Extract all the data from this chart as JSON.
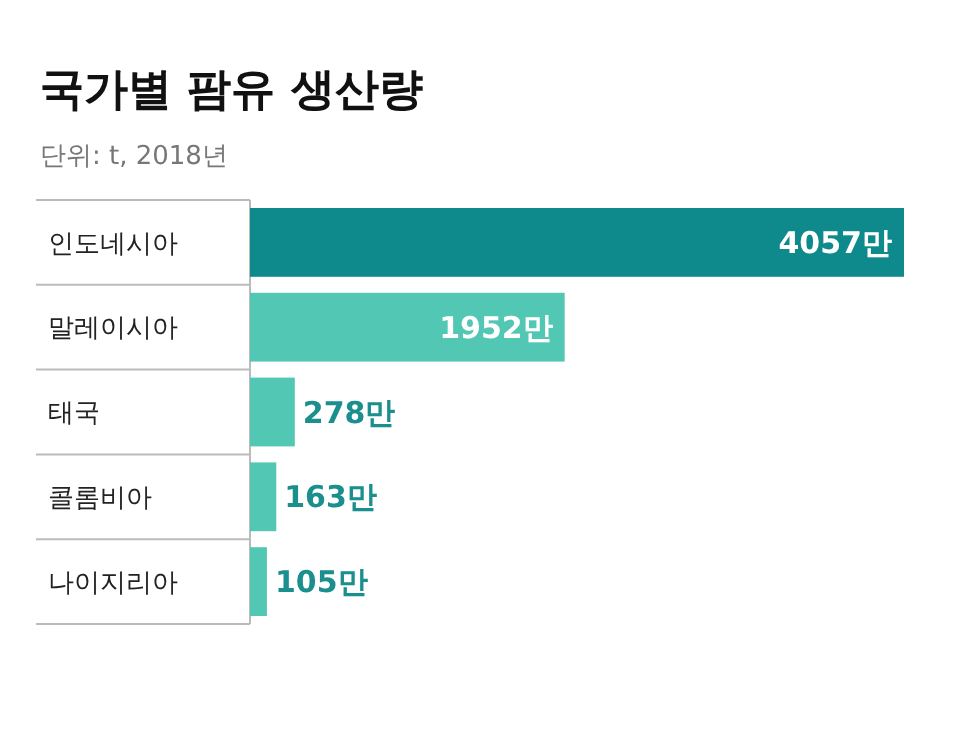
{
  "chart_data": {
    "type": "bar",
    "orientation": "horizontal",
    "title": "국가별 팜유 생산량",
    "subtitle": "단위: t, 2018년",
    "categories": [
      "인도네시아",
      "말레이시아",
      "태국",
      "콜롬비아",
      "나이지리아"
    ],
    "values": [
      4057,
      1952,
      278,
      163,
      105
    ],
    "value_labels": [
      "4057만",
      "1952만",
      "278만",
      "163만",
      "105만"
    ],
    "colors": [
      "#0f8a8c",
      "#52c8b4",
      "#52c8b4",
      "#52c8b4",
      "#52c8b4"
    ]
  }
}
